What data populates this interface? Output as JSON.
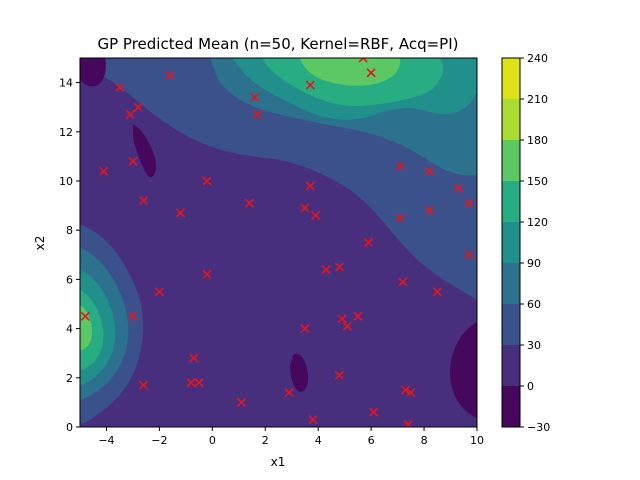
{
  "chart_data": {
    "type": "contour",
    "title": "GP Predicted Mean (n=50, Kernel=RBF, Acq=PI)",
    "xlabel": "x1",
    "ylabel": "x2",
    "xlim": [
      -5,
      10
    ],
    "ylim": [
      0,
      15
    ],
    "xticks": [
      "−4",
      "−2",
      "0",
      "2",
      "4",
      "6",
      "8",
      "10"
    ],
    "xtick_values": [
      -4,
      -2,
      0,
      2,
      4,
      6,
      8,
      10
    ],
    "yticks": [
      "0",
      "2",
      "4",
      "6",
      "8",
      "10",
      "12",
      "14"
    ],
    "ytick_values": [
      0,
      2,
      4,
      6,
      8,
      10,
      12,
      14
    ],
    "colorbar": {
      "levels": [
        -30,
        0,
        30,
        60,
        90,
        120,
        150,
        180,
        210,
        240
      ],
      "tick_labels": [
        "−30",
        "0",
        "30",
        "60",
        "90",
        "120",
        "150",
        "180",
        "210",
        "240"
      ],
      "colors": [
        "#46085c",
        "#472f7d",
        "#3b518b",
        "#2c718e",
        "#21908d",
        "#27ad81",
        "#5cc863",
        "#aadc32",
        "#dde318"
      ]
    },
    "sample_marker_color": "#e8141c",
    "grid": false,
    "samples": [
      [
        -4.8,
        4.5
      ],
      [
        -4.1,
        10.4
      ],
      [
        -3.5,
        13.8
      ],
      [
        -3.1,
        12.7
      ],
      [
        -2.8,
        13.0
      ],
      [
        -3.0,
        10.8
      ],
      [
        -2.6,
        9.2
      ],
      [
        -3.0,
        4.5
      ],
      [
        -2.6,
        1.7
      ],
      [
        -2.0,
        5.5
      ],
      [
        -1.6,
        14.3
      ],
      [
        -1.2,
        8.7
      ],
      [
        -0.7,
        2.8
      ],
      [
        -0.8,
        1.8
      ],
      [
        -0.5,
        1.8
      ],
      [
        -0.2,
        10.0
      ],
      [
        -0.2,
        6.2
      ],
      [
        1.1,
        1.0
      ],
      [
        1.4,
        9.1
      ],
      [
        1.6,
        13.4
      ],
      [
        1.7,
        12.7
      ],
      [
        2.9,
        1.4
      ],
      [
        3.5,
        8.9
      ],
      [
        3.5,
        4.0
      ],
      [
        3.7,
        9.8
      ],
      [
        3.7,
        13.9
      ],
      [
        3.8,
        0.3
      ],
      [
        3.9,
        8.6
      ],
      [
        4.3,
        6.4
      ],
      [
        4.8,
        6.5
      ],
      [
        4.8,
        2.1
      ],
      [
        4.9,
        4.4
      ],
      [
        5.1,
        4.1
      ],
      [
        5.5,
        4.5
      ],
      [
        5.7,
        15.0
      ],
      [
        6.0,
        14.4
      ],
      [
        5.9,
        7.5
      ],
      [
        6.1,
        0.6
      ],
      [
        7.1,
        10.6
      ],
      [
        7.1,
        8.5
      ],
      [
        7.2,
        5.9
      ],
      [
        7.3,
        1.5
      ],
      [
        7.5,
        1.4
      ],
      [
        7.4,
        0.1
      ],
      [
        8.2,
        10.4
      ],
      [
        8.2,
        8.8
      ],
      [
        8.5,
        5.5
      ],
      [
        9.3,
        9.7
      ],
      [
        9.7,
        9.1
      ],
      [
        9.7,
        7.0
      ]
    ]
  }
}
